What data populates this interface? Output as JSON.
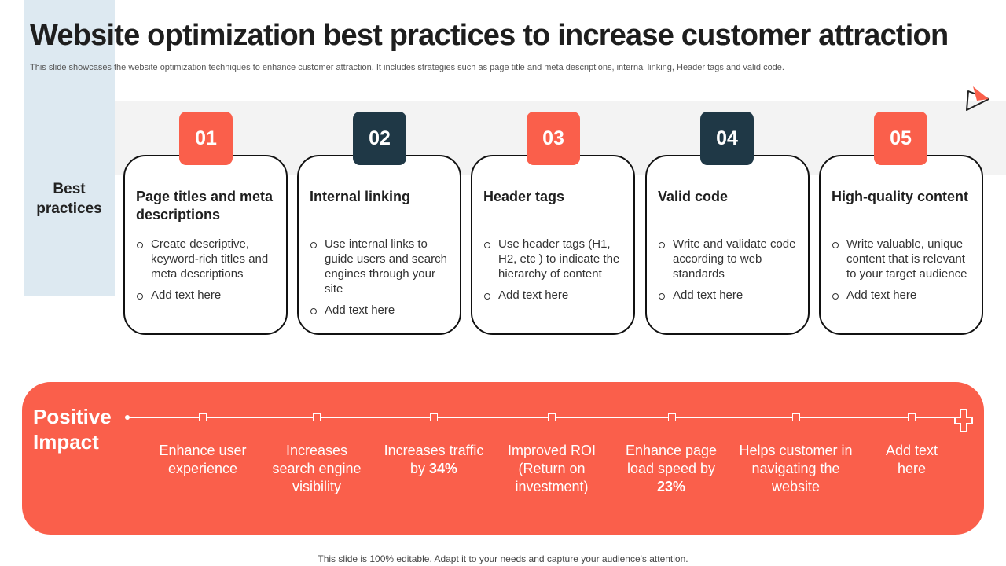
{
  "slide": {
    "title": "Website optimization best practices to increase customer attraction",
    "subtitle": "This slide showcases the website optimization techniques to enhance customer attraction. It includes strategies such as page title and meta descriptions, internal linking, Header tags and valid code.",
    "footer": "This slide is 100% editable. Adapt it to your needs and capture your audience's attention."
  },
  "logo": {
    "icon": "paper-plane-icon",
    "color": "#fa5f4b"
  },
  "best_practices": {
    "label": "Best practices",
    "cards": [
      {
        "number": "01",
        "badge_color": "#fa5f4b",
        "title": "Page titles and meta descriptions",
        "bullets": [
          "Create descriptive, keyword-rich titles and meta descriptions",
          "Add text here"
        ]
      },
      {
        "number": "02",
        "badge_color": "#1f3846",
        "title": "Internal linking",
        "bullets": [
          "Use internal links to guide users and search engines through your site",
          "Add text here"
        ]
      },
      {
        "number": "03",
        "badge_color": "#fa5f4b",
        "title": "Header tags",
        "bullets": [
          "Use header tags (H1, H2, etc ) to indicate the hierarchy of content",
          "Add text here"
        ]
      },
      {
        "number": "04",
        "badge_color": "#1f3846",
        "title": "Valid code",
        "bullets": [
          "Write and validate code according to web standards",
          "Add text here"
        ]
      },
      {
        "number": "05",
        "badge_color": "#fa5f4b",
        "title": "High-quality content",
        "bullets": [
          "Write valuable, unique content that is relevant to your target audience",
          "Add text here"
        ]
      }
    ]
  },
  "positive_impact": {
    "title": "Positive Impact",
    "end_icon": "plus-outline-icon",
    "items": [
      {
        "pre": "Enhance user experience",
        "bold": ""
      },
      {
        "pre": "Increases search engine visibility",
        "bold": ""
      },
      {
        "pre": "Increases traffic by ",
        "bold": "34%"
      },
      {
        "pre": "Improved ROI (Return on investment)",
        "bold": ""
      },
      {
        "pre": "Enhance page load speed by ",
        "bold": "23%"
      },
      {
        "pre": "Helps customer in navigating the website",
        "bold": ""
      },
      {
        "pre": "Add text here",
        "bold": ""
      }
    ]
  },
  "colors": {
    "accent": "#fa5f4b",
    "dark": "#1f3846",
    "side_band": "#dde9f1",
    "grey_band": "#f3f3f3"
  }
}
